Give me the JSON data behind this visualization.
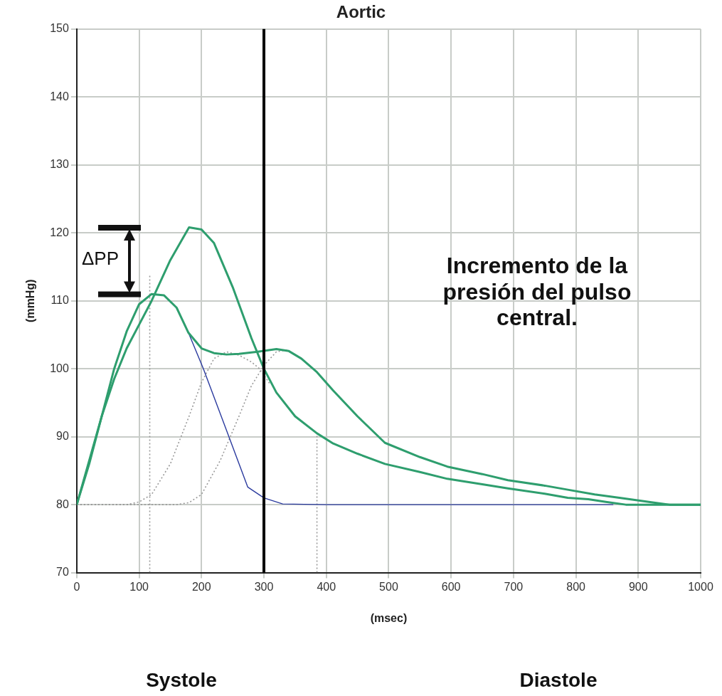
{
  "chart_data": {
    "type": "line",
    "title": "Aortic",
    "xlabel": "(msec)",
    "ylabel": "(mmHg)",
    "xlim": [
      0,
      1000
    ],
    "xticks": [
      0,
      100,
      200,
      300,
      400,
      500,
      600,
      700,
      800,
      900,
      1000
    ],
    "ylim": [
      70,
      150
    ],
    "yticks": [
      70,
      80,
      90,
      100,
      110,
      120,
      130,
      140,
      150
    ],
    "grid": true,
    "legend": false,
    "marker": "none",
    "series": [
      {
        "color": "#2e9e6e",
        "x": [
          0,
          20,
          40,
          60,
          80,
          100,
          120,
          150,
          180,
          200,
          220,
          250,
          280,
          300,
          320,
          350,
          385,
          411,
          450,
          494,
          550,
          594,
          650,
          691,
          750,
          787,
          820,
          848,
          880,
          950,
          1000
        ],
        "values": [
          80,
          86.5,
          93,
          98.5,
          103,
          106.5,
          110,
          116,
          120.8,
          120.5,
          118.5,
          112,
          104.5,
          100,
          96.5,
          93,
          90.5,
          89,
          87.5,
          86,
          84.8,
          83.8,
          83,
          82.4,
          81.6,
          81,
          80.8,
          80.4,
          80,
          80,
          80
        ]
      },
      {
        "color": "#2e9e6e",
        "x": [
          0,
          20,
          40,
          60,
          80,
          100,
          120,
          140,
          160,
          179,
          200,
          220,
          240,
          260,
          290,
          320,
          340,
          360,
          385,
          411,
          450,
          494,
          550,
          594,
          650,
          691,
          750,
          787,
          830,
          870,
          925,
          950,
          1000
        ],
        "values": [
          80,
          86,
          93,
          100,
          105.5,
          109.5,
          111,
          110.8,
          109,
          105.3,
          103,
          102.3,
          102.1,
          102.2,
          102.5,
          102.9,
          102.6,
          101.5,
          99.5,
          96.8,
          93,
          89.1,
          87,
          85.6,
          84.5,
          83.6,
          82.8,
          82.2,
          81.5,
          81,
          80.3,
          80,
          80
        ]
      },
      {
        "color": "#2a3a9e",
        "x": [
          179,
          203,
          239,
          274,
          300,
          330,
          400,
          500,
          600,
          700,
          800,
          860
        ],
        "values": [
          105.3,
          100,
          91.2,
          82.6,
          81,
          80.1,
          80,
          80,
          80,
          80,
          80,
          80
        ]
      },
      {
        "color": "#999999",
        "line_style": "dotted",
        "x": [
          0,
          80,
          100,
          120,
          150,
          180,
          200,
          220,
          240,
          260,
          280,
          293,
          310
        ],
        "values": [
          80,
          80,
          80.4,
          81.5,
          86,
          93,
          98,
          101.5,
          102.5,
          102,
          101,
          100,
          97.7
        ]
      },
      {
        "color": "#999999",
        "line_style": "dotted",
        "x": [
          0,
          160,
          180,
          200,
          230,
          260,
          280,
          300,
          320,
          340
        ],
        "values": [
          80,
          80,
          80.3,
          81.5,
          86.5,
          93,
          97.5,
          100.5,
          102.5,
          102.8
        ]
      },
      {
        "color": "#999999",
        "line_style": "dotted",
        "x": [
          117,
          117
        ],
        "values": [
          70,
          113.7
        ]
      },
      {
        "color": "#999999",
        "line_style": "dotted",
        "x": [
          385,
          385
        ],
        "values": [
          70,
          90.5
        ]
      }
    ],
    "ref_lines": [
      {
        "axis": "x",
        "value": 300,
        "color": "#000000"
      }
    ],
    "annotations": [
      "ΔPP",
      "Incremento de la presión del pulso central.",
      "Systole",
      "Diastole"
    ]
  }
}
